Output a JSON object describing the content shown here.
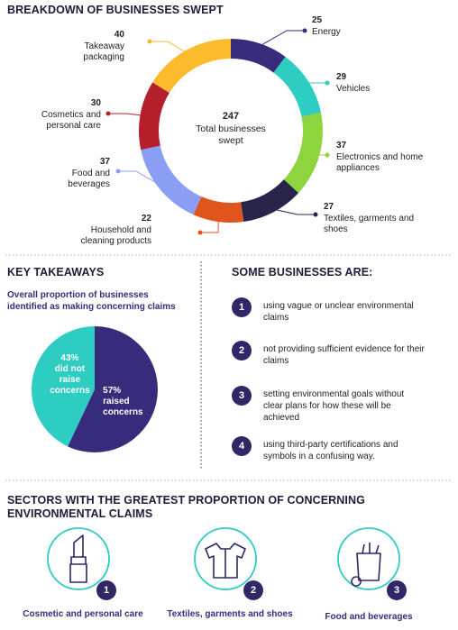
{
  "chart_data": [
    {
      "type": "donut",
      "title": "BREAKDOWN OF BUSINESSES SWEPT",
      "total": 247,
      "center_label": "Total businesses swept",
      "categories": [
        "Energy",
        "Vehicles",
        "Electronics and home appliances",
        "Textiles, garments and shoes",
        "Household and cleaning products",
        "Food and beverages",
        "Cosmetics and personal care",
        "Takeaway packaging"
      ],
      "values": [
        25,
        29,
        37,
        27,
        22,
        37,
        30,
        40
      ],
      "colors": [
        "#372b7c",
        "#2ecdc2",
        "#8ed43f",
        "#29244a",
        "#e0541e",
        "#8a9ef6",
        "#b41f2c",
        "#fbbb2d"
      ]
    },
    {
      "type": "pie",
      "title": "KEY TAKEAWAYS",
      "subtitle": "Overall proportion of businesses identified as making concerning claims",
      "categories": [
        "did not raise concerns",
        "raised concerns"
      ],
      "values": [
        43,
        57
      ],
      "value_labels": [
        "43%",
        "57%"
      ],
      "colors": [
        "#2ecdc2",
        "#372b7c"
      ]
    }
  ],
  "practices": {
    "title": "SOME BUSINESSES ARE:",
    "items": [
      {
        "number": 1,
        "text": "using vague or unclear environmental claims"
      },
      {
        "number": 2,
        "text": "not providing sufficient evidence for their claims"
      },
      {
        "number": 3,
        "text": "setting environmental goals without clear plans for how these will be achieved"
      },
      {
        "number": 4,
        "text": "using third-party certifications and symbols in a confusing way."
      }
    ]
  },
  "sectors": {
    "title": "SECTORS WITH THE GREATEST PROPORTION OF CONCERNING ENVIRONMENTAL CLAIMS",
    "items": [
      {
        "rank": 1,
        "label": "Cosmetic and personal care"
      },
      {
        "rank": 2,
        "label": "Textiles, garments and shoes"
      },
      {
        "rank": 3,
        "label": "Food and beverages"
      }
    ]
  }
}
